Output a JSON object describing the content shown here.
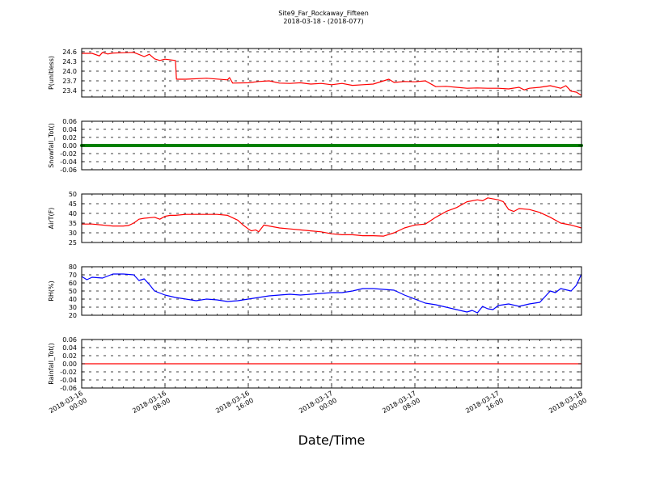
{
  "title": "Site9_Far_Rockaway_Fifteen",
  "subtitle": "2018-03-18 - (2018-077)",
  "xlabel": "Date/Time",
  "x_ticks": [
    {
      "hour": 0,
      "line1": "2018-03-16",
      "line2": "00:00"
    },
    {
      "hour": 8,
      "line1": "2018-03-16",
      "line2": "08:00"
    },
    {
      "hour": 16,
      "line1": "2018-03-16",
      "line2": "16:00"
    },
    {
      "hour": 24,
      "line1": "2018-03-17",
      "line2": "00:00"
    },
    {
      "hour": 32,
      "line1": "2018-03-17",
      "line2": "08:00"
    },
    {
      "hour": 40,
      "line1": "2018-03-17",
      "line2": "16:00"
    },
    {
      "hour": 48,
      "line1": "2018-03-18",
      "line2": "00:00"
    }
  ],
  "chart_data": [
    {
      "type": "line",
      "ylabel": "P(unitless)",
      "ylim": [
        23.2,
        24.7
      ],
      "yticks": [
        "23.4",
        "23.7",
        "24.0",
        "24.3",
        "24.6"
      ],
      "grid": true,
      "color": "#ff0000",
      "x_unit": "hours since 2018-03-16 00:00",
      "x": [
        0,
        1,
        1.7,
        2,
        2.5,
        3,
        4,
        5,
        6,
        6.5,
        7,
        7.5,
        8,
        9,
        9.1,
        10,
        12,
        14,
        14.2,
        14.5,
        16,
        17,
        18,
        19,
        20,
        21,
        22,
        23,
        24,
        25,
        26,
        27,
        28,
        29,
        29.5,
        30,
        31,
        32,
        33,
        34,
        35,
        36,
        37,
        38,
        39,
        40,
        41,
        42,
        42.5,
        43,
        44,
        45,
        46,
        46.5,
        47,
        47.5,
        48
      ],
      "values": [
        24.55,
        24.55,
        24.47,
        24.58,
        24.53,
        24.56,
        24.57,
        24.58,
        24.45,
        24.52,
        24.38,
        24.33,
        24.37,
        24.33,
        23.75,
        23.75,
        23.78,
        23.73,
        23.8,
        23.63,
        23.64,
        23.68,
        23.7,
        23.63,
        23.62,
        23.64,
        23.6,
        23.62,
        23.58,
        23.62,
        23.56,
        23.58,
        23.6,
        23.7,
        23.75,
        23.65,
        23.68,
        23.67,
        23.7,
        23.52,
        23.53,
        23.5,
        23.47,
        23.48,
        23.47,
        23.47,
        23.45,
        23.5,
        23.42,
        23.47,
        23.5,
        23.55,
        23.47,
        23.55,
        23.38,
        23.35,
        23.25
      ]
    },
    {
      "type": "scatter",
      "ylabel": "Snowfall_Tot()",
      "ylim": [
        -0.06,
        0.06
      ],
      "yticks": [
        "-0.06",
        "-0.04",
        "-0.02",
        "0.00",
        "0.02",
        "0.04",
        "0.06"
      ],
      "grid": true,
      "color": "#008000",
      "x_unit": "hours since 2018-03-16 00:00",
      "x": [
        0,
        48
      ],
      "values": [
        0,
        0
      ],
      "note_points": "constant zero, sampled every 5 minutes"
    },
    {
      "type": "line",
      "ylabel": "AirT(F)",
      "ylim": [
        25,
        50
      ],
      "yticks": [
        "25",
        "30",
        "35",
        "40",
        "45",
        "50"
      ],
      "grid": true,
      "color": "#ff0000",
      "x_unit": "hours since 2018-03-16 00:00",
      "x": [
        0,
        1,
        2,
        3,
        4,
        4.5,
        5,
        5.5,
        6,
        7,
        7.5,
        8,
        8.5,
        9,
        10,
        11,
        12,
        13,
        14,
        15,
        15.5,
        16,
        16.3,
        16.7,
        17,
        17.5,
        18,
        19,
        20,
        21,
        22,
        23,
        24,
        25,
        26,
        27,
        28,
        29,
        30,
        31,
        32,
        33,
        34,
        35,
        36,
        37,
        38,
        38.5,
        39,
        40,
        40.5,
        41,
        41.5,
        42,
        43,
        44,
        45,
        46,
        47,
        48
      ],
      "values": [
        34.5,
        34.5,
        34,
        33.5,
        33.5,
        33.8,
        35,
        37,
        37.5,
        38,
        37,
        38.5,
        39,
        39,
        39.5,
        39.5,
        39.5,
        39.5,
        39,
        36.5,
        34,
        32,
        31,
        31.5,
        30.5,
        34,
        33.5,
        32.5,
        32,
        31.5,
        31,
        30.5,
        29.5,
        29,
        29,
        28.5,
        28.5,
        28.3,
        30,
        32.5,
        34,
        34.5,
        38,
        41,
        43,
        46,
        47,
        46.5,
        48,
        47,
        46,
        42,
        41,
        42.5,
        42,
        40.5,
        38,
        35,
        34,
        32.5
      ]
    },
    {
      "type": "line",
      "ylabel": "RH(%)",
      "ylim": [
        20,
        80
      ],
      "yticks": [
        "20",
        "30",
        "40",
        "50",
        "60",
        "70",
        "80"
      ],
      "grid": true,
      "color": "#0000ff",
      "x_unit": "hours since 2018-03-16 00:00",
      "x": [
        0,
        0.5,
        1,
        2,
        3,
        4,
        5,
        5.5,
        6,
        6.5,
        7,
        8,
        9,
        10,
        11,
        12,
        13,
        14,
        15,
        16,
        17,
        18,
        19,
        20,
        21,
        22,
        23,
        24,
        25,
        26,
        27,
        28,
        29,
        30,
        31,
        32,
        33,
        34,
        35,
        36,
        37,
        37.5,
        38,
        38.5,
        39,
        39.5,
        40,
        41,
        42,
        43,
        44,
        44.5,
        45,
        45.5,
        46,
        47,
        47.5,
        48
      ],
      "values": [
        68,
        64,
        67,
        66,
        71,
        71,
        70,
        63,
        65,
        58,
        50,
        45,
        42,
        40,
        38,
        40,
        39,
        37,
        38,
        40,
        42,
        44,
        45,
        46,
        45,
        46,
        47,
        48,
        48,
        50,
        53,
        53,
        52,
        51,
        45,
        40,
        35,
        33,
        30,
        27,
        24,
        26,
        23,
        31,
        28,
        27,
        32,
        34,
        31,
        34,
        36,
        43,
        50,
        48,
        53,
        50,
        57,
        71
      ]
    },
    {
      "type": "line",
      "ylabel": "Rainfall_Tot()",
      "ylim": [
        -0.06,
        0.06
      ],
      "yticks": [
        "-0.06",
        "-0.04",
        "-0.02",
        "0.00",
        "0.02",
        "0.04",
        "0.06"
      ],
      "grid": true,
      "color": "#ff0000",
      "x_unit": "hours since 2018-03-16 00:00",
      "x": [
        0,
        48
      ],
      "values": [
        0,
        0
      ]
    }
  ]
}
